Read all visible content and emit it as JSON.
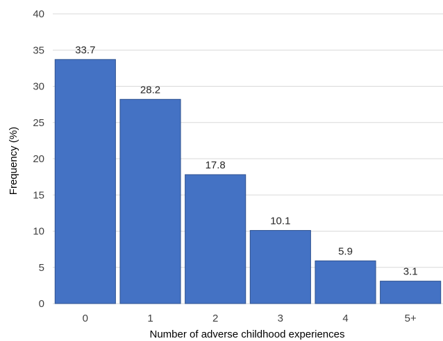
{
  "chart_data": {
    "type": "bar",
    "categories": [
      "0",
      "1",
      "2",
      "3",
      "4",
      "5+"
    ],
    "values": [
      33.7,
      28.2,
      17.8,
      10.1,
      5.9,
      3.1
    ],
    "data_labels": [
      "33.7",
      "28.2",
      "17.8",
      "10.1",
      "5.9",
      "3.1"
    ],
    "xlabel": "Number of adverse childhood experiences",
    "ylabel": "Frequency (%)",
    "ylim": [
      0,
      40
    ],
    "yticks": [
      0,
      5,
      10,
      15,
      20,
      25,
      30,
      35,
      40
    ],
    "grid": true,
    "legend": "none",
    "colors": {
      "bar": "#4472C4",
      "bar_edge": "#2F528F",
      "grid": "#D9D9D9"
    }
  }
}
